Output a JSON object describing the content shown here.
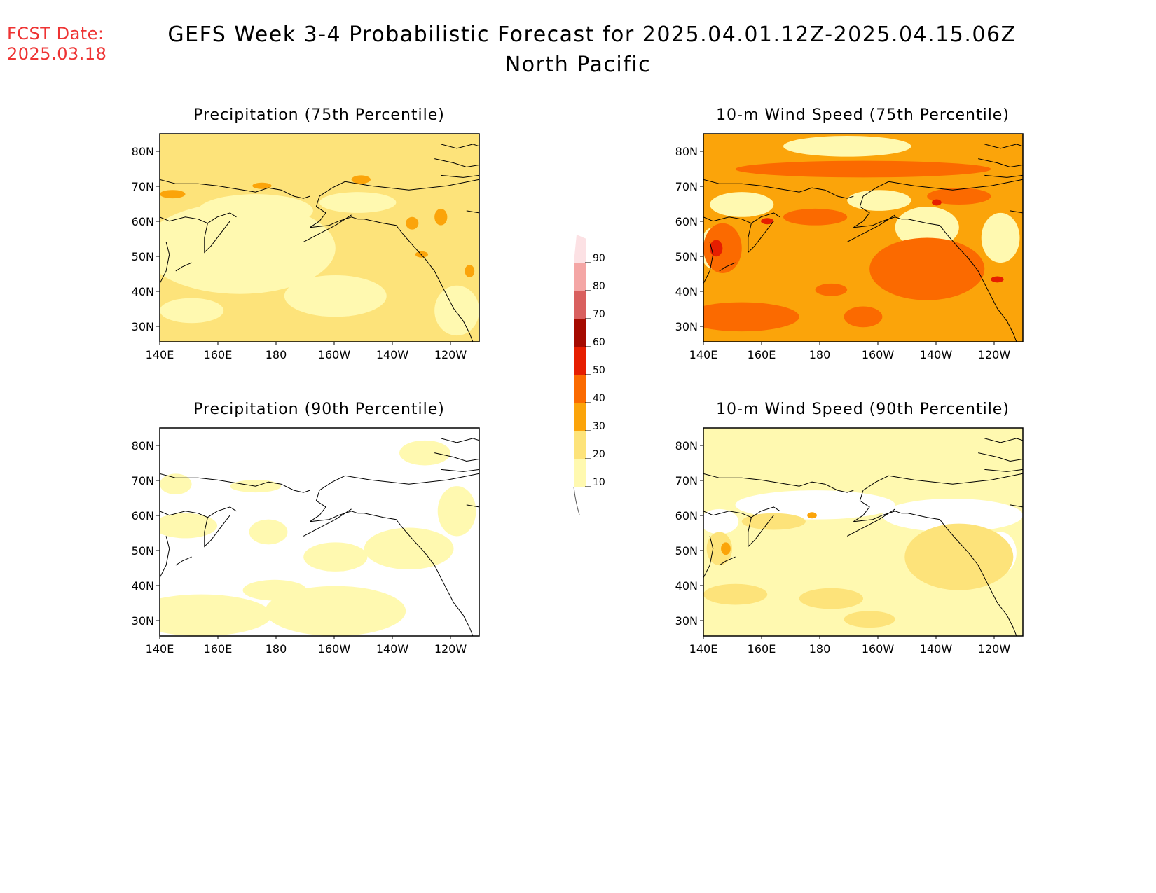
{
  "header": {
    "fcst_label": "FCST Date:",
    "fcst_date": "2025.03.18",
    "title": "GEFS Week 3-4 Probabilistic Forecast for 2025.04.01.12Z-2025.04.15.06Z",
    "subtitle": "North Pacific"
  },
  "axes": {
    "lat_ticks": [
      "80N",
      "70N",
      "60N",
      "50N",
      "40N",
      "30N"
    ],
    "lon_ticks": [
      "140E",
      "160E",
      "180",
      "160W",
      "140W",
      "120W"
    ]
  },
  "colorbar": {
    "levels": [
      "10",
      "20",
      "30",
      "40",
      "50",
      "60",
      "70",
      "80",
      "90"
    ],
    "colors": [
      "#fff9b0",
      "#fde37a",
      "#fba40a",
      "#fb6a00",
      "#e61e00",
      "#a50a00",
      "#d9605f",
      "#f4a6a5",
      "#fce1e4"
    ]
  },
  "panels": [
    {
      "title": "Precipitation (75th Percentile)",
      "base_level": "20",
      "fill": "#fde37a"
    },
    {
      "title": "10-m Wind Speed (75th Percentile)",
      "base_level": "30",
      "fill": "#fba40a"
    },
    {
      "title": "Precipitation (90th Percentile)",
      "base_level": "<10",
      "fill": "#ffffff"
    },
    {
      "title": "10-m Wind Speed (90th Percentile)",
      "base_level": "10",
      "fill": "#fff9b0"
    }
  ]
}
